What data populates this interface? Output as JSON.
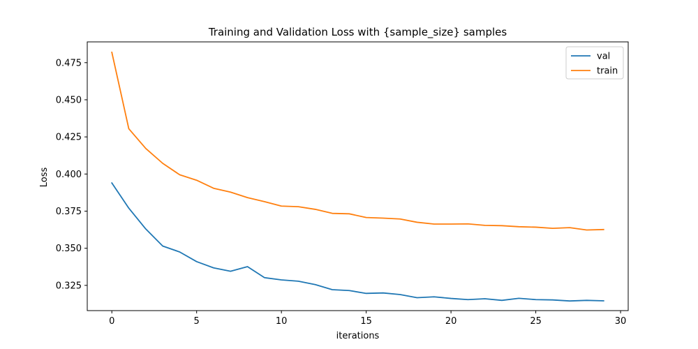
{
  "chart_data": {
    "type": "line",
    "title": "Training and Validation Loss with {sample_size} samples",
    "xlabel": "iterations",
    "ylabel": "Loss",
    "xlim": [
      -1.45,
      30.45
    ],
    "ylim": [
      0.308,
      0.489
    ],
    "xticks": [
      0,
      5,
      10,
      15,
      20,
      25,
      30
    ],
    "xtick_labels": [
      "0",
      "5",
      "10",
      "15",
      "20",
      "25",
      "30"
    ],
    "yticks": [
      0.325,
      0.35,
      0.375,
      0.4,
      0.425,
      0.45,
      0.475
    ],
    "ytick_labels": [
      "0.325",
      "0.350",
      "0.375",
      "0.400",
      "0.425",
      "0.450",
      "0.475"
    ],
    "grid": false,
    "legend_position": "top-right",
    "x": [
      0,
      1,
      2,
      3,
      4,
      5,
      6,
      7,
      8,
      9,
      10,
      11,
      12,
      13,
      14,
      15,
      16,
      17,
      18,
      19,
      20,
      21,
      22,
      23,
      24,
      25,
      26,
      27,
      28,
      29
    ],
    "series": [
      {
        "name": "val",
        "color": "#1f77b4",
        "values": [
          0.394,
          0.377,
          0.363,
          0.3515,
          0.3475,
          0.341,
          0.3368,
          0.3345,
          0.3376,
          0.3302,
          0.3287,
          0.3278,
          0.3255,
          0.3221,
          0.3215,
          0.3196,
          0.3199,
          0.3188,
          0.3167,
          0.3173,
          0.3162,
          0.3154,
          0.316,
          0.3149,
          0.3163,
          0.3154,
          0.3152,
          0.3145,
          0.3149,
          0.3146
        ]
      },
      {
        "name": "train",
        "color": "#ff7f0e",
        "values": [
          0.482,
          0.4305,
          0.4172,
          0.4072,
          0.3995,
          0.3958,
          0.3904,
          0.3878,
          0.3841,
          0.3814,
          0.3784,
          0.378,
          0.3762,
          0.3735,
          0.3732,
          0.3707,
          0.3703,
          0.3697,
          0.3675,
          0.3663,
          0.3663,
          0.3664,
          0.3654,
          0.3652,
          0.3645,
          0.3642,
          0.3634,
          0.3639,
          0.3623,
          0.3626
        ]
      }
    ]
  }
}
